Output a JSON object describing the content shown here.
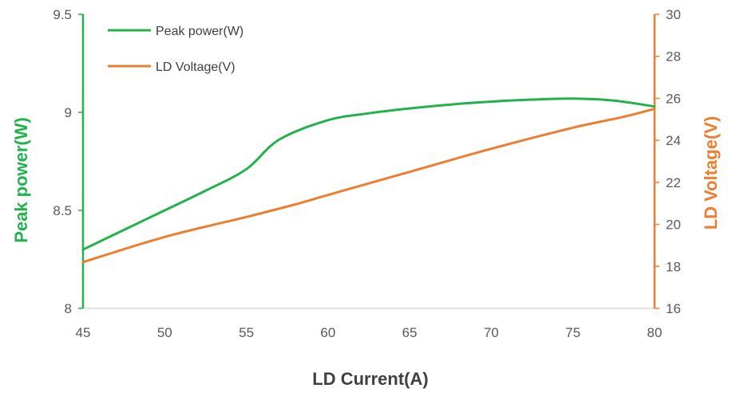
{
  "chart_data": {
    "type": "line",
    "xlabel": "LD Current(A)",
    "ylabel_left": "Peak power(W)",
    "ylabel_right": "LD Voltage(V)",
    "xlim": [
      45,
      80
    ],
    "ylim_left": [
      8,
      9.5
    ],
    "ylim_right": [
      16,
      30
    ],
    "x_ticks": [
      "45",
      "50",
      "55",
      "60",
      "65",
      "70",
      "75",
      "80"
    ],
    "y_left_ticks": [
      "8",
      "8.5",
      "9",
      "9.5"
    ],
    "y_right_ticks": [
      "16",
      "18",
      "20",
      "22",
      "24",
      "26",
      "28",
      "30"
    ],
    "grid": false,
    "legend_position": "top-left",
    "series": [
      {
        "name": "Peak power(W)",
        "axis": "left",
        "color": "#22b14c",
        "x": [
          45,
          47.5,
          50,
          52.5,
          55,
          57,
          60,
          62.5,
          65,
          67.5,
          70,
          72.5,
          75,
          77.5,
          80
        ],
        "values": [
          8.3,
          8.4,
          8.5,
          8.6,
          8.71,
          8.86,
          8.96,
          8.995,
          9.02,
          9.04,
          9.055,
          9.065,
          9.07,
          9.06,
          9.03
        ]
      },
      {
        "name": "LD Voltage(V)",
        "axis": "right",
        "color": "#ed7d31",
        "x": [
          45,
          50,
          55,
          58,
          60,
          65,
          70,
          75,
          78,
          80
        ],
        "values": [
          18.2,
          19.4,
          20.35,
          20.95,
          21.4,
          22.5,
          23.6,
          24.6,
          25.1,
          25.5
        ]
      }
    ]
  }
}
